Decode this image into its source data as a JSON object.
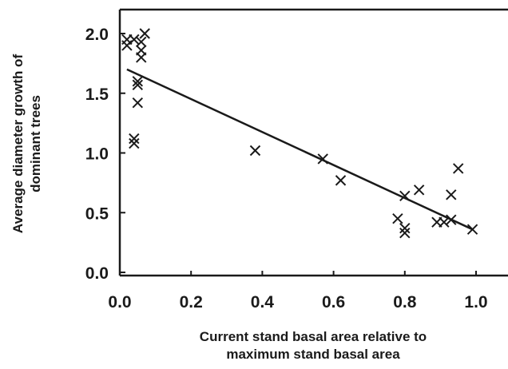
{
  "chart_data": {
    "type": "scatter",
    "xlabel": [
      "Current stand basal area relative to",
      "maximum stand basal area"
    ],
    "ylabel": [
      "Average diameter growth of",
      "dominant trees"
    ],
    "xlim": [
      0.0,
      1.0
    ],
    "ylim": [
      0.0,
      2.0
    ],
    "x_ticks": [
      "0.0",
      "0.2",
      "0.4",
      "0.6",
      "0.8",
      "1.0"
    ],
    "y_ticks": [
      "0.0",
      "0.5",
      "1.0",
      "1.5",
      "2.0"
    ],
    "grid": false,
    "legend": "none",
    "marker": "x",
    "points": [
      {
        "x": 0.02,
        "y": 1.95
      },
      {
        "x": 0.02,
        "y": 1.9
      },
      {
        "x": 0.04,
        "y": 1.95
      },
      {
        "x": 0.06,
        "y": 1.93
      },
      {
        "x": 0.07,
        "y": 2.0
      },
      {
        "x": 0.06,
        "y": 1.86
      },
      {
        "x": 0.06,
        "y": 1.8
      },
      {
        "x": 0.05,
        "y": 1.6
      },
      {
        "x": 0.05,
        "y": 1.57
      },
      {
        "x": 0.05,
        "y": 1.42
      },
      {
        "x": 0.04,
        "y": 1.12
      },
      {
        "x": 0.04,
        "y": 1.08
      },
      {
        "x": 0.38,
        "y": 1.02
      },
      {
        "x": 0.57,
        "y": 0.95
      },
      {
        "x": 0.62,
        "y": 0.77
      },
      {
        "x": 0.8,
        "y": 0.64
      },
      {
        "x": 0.84,
        "y": 0.69
      },
      {
        "x": 0.78,
        "y": 0.45
      },
      {
        "x": 0.8,
        "y": 0.37
      },
      {
        "x": 0.8,
        "y": 0.33
      },
      {
        "x": 0.89,
        "y": 0.42
      },
      {
        "x": 0.91,
        "y": 0.42
      },
      {
        "x": 0.93,
        "y": 0.44
      },
      {
        "x": 0.93,
        "y": 0.65
      },
      {
        "x": 0.95,
        "y": 0.87
      },
      {
        "x": 0.99,
        "y": 0.36
      }
    ],
    "trendline": {
      "x": [
        0.02,
        0.99
      ],
      "y": [
        1.7,
        0.36
      ]
    }
  }
}
